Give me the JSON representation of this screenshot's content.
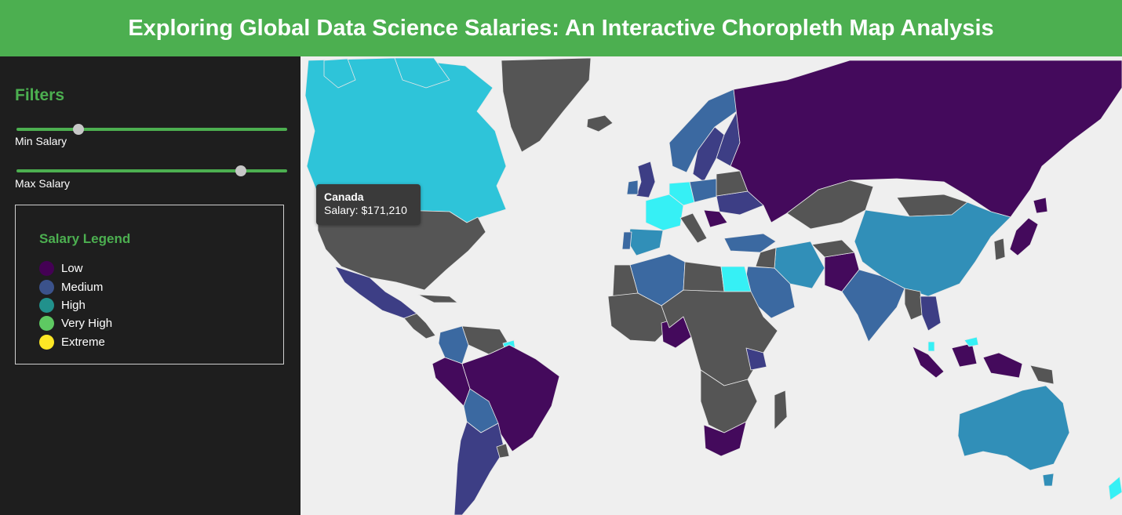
{
  "header": {
    "title": "Exploring Global Data Science Salaries: An Interactive Choropleth Map Analysis"
  },
  "sidebar": {
    "filters_title": "Filters",
    "min_salary": {
      "label": "Min Salary",
      "level": 0.23
    },
    "max_salary": {
      "label": "Max Salary",
      "level": 0.83
    }
  },
  "legend": {
    "title": "Salary Legend",
    "items": [
      {
        "label": "Low",
        "color": "#440154"
      },
      {
        "label": "Medium",
        "color": "#3b528b"
      },
      {
        "label": "High",
        "color": "#21918c"
      },
      {
        "label": "Very High",
        "color": "#5ec962"
      },
      {
        "label": "Extreme",
        "color": "#fde725"
      }
    ]
  },
  "tooltip": {
    "country": "Canada",
    "salary": "Salary: $171,210"
  },
  "colors": {
    "accent": "#4caf50",
    "no_data": "#555555",
    "ocean": "#efefef",
    "canada": "#2ec4d9",
    "cyan": "#36f0f5",
    "blue": "#318fb8",
    "steel": "#3b69a1",
    "indigo": "#3d3e85",
    "purple": "#440a5c"
  }
}
